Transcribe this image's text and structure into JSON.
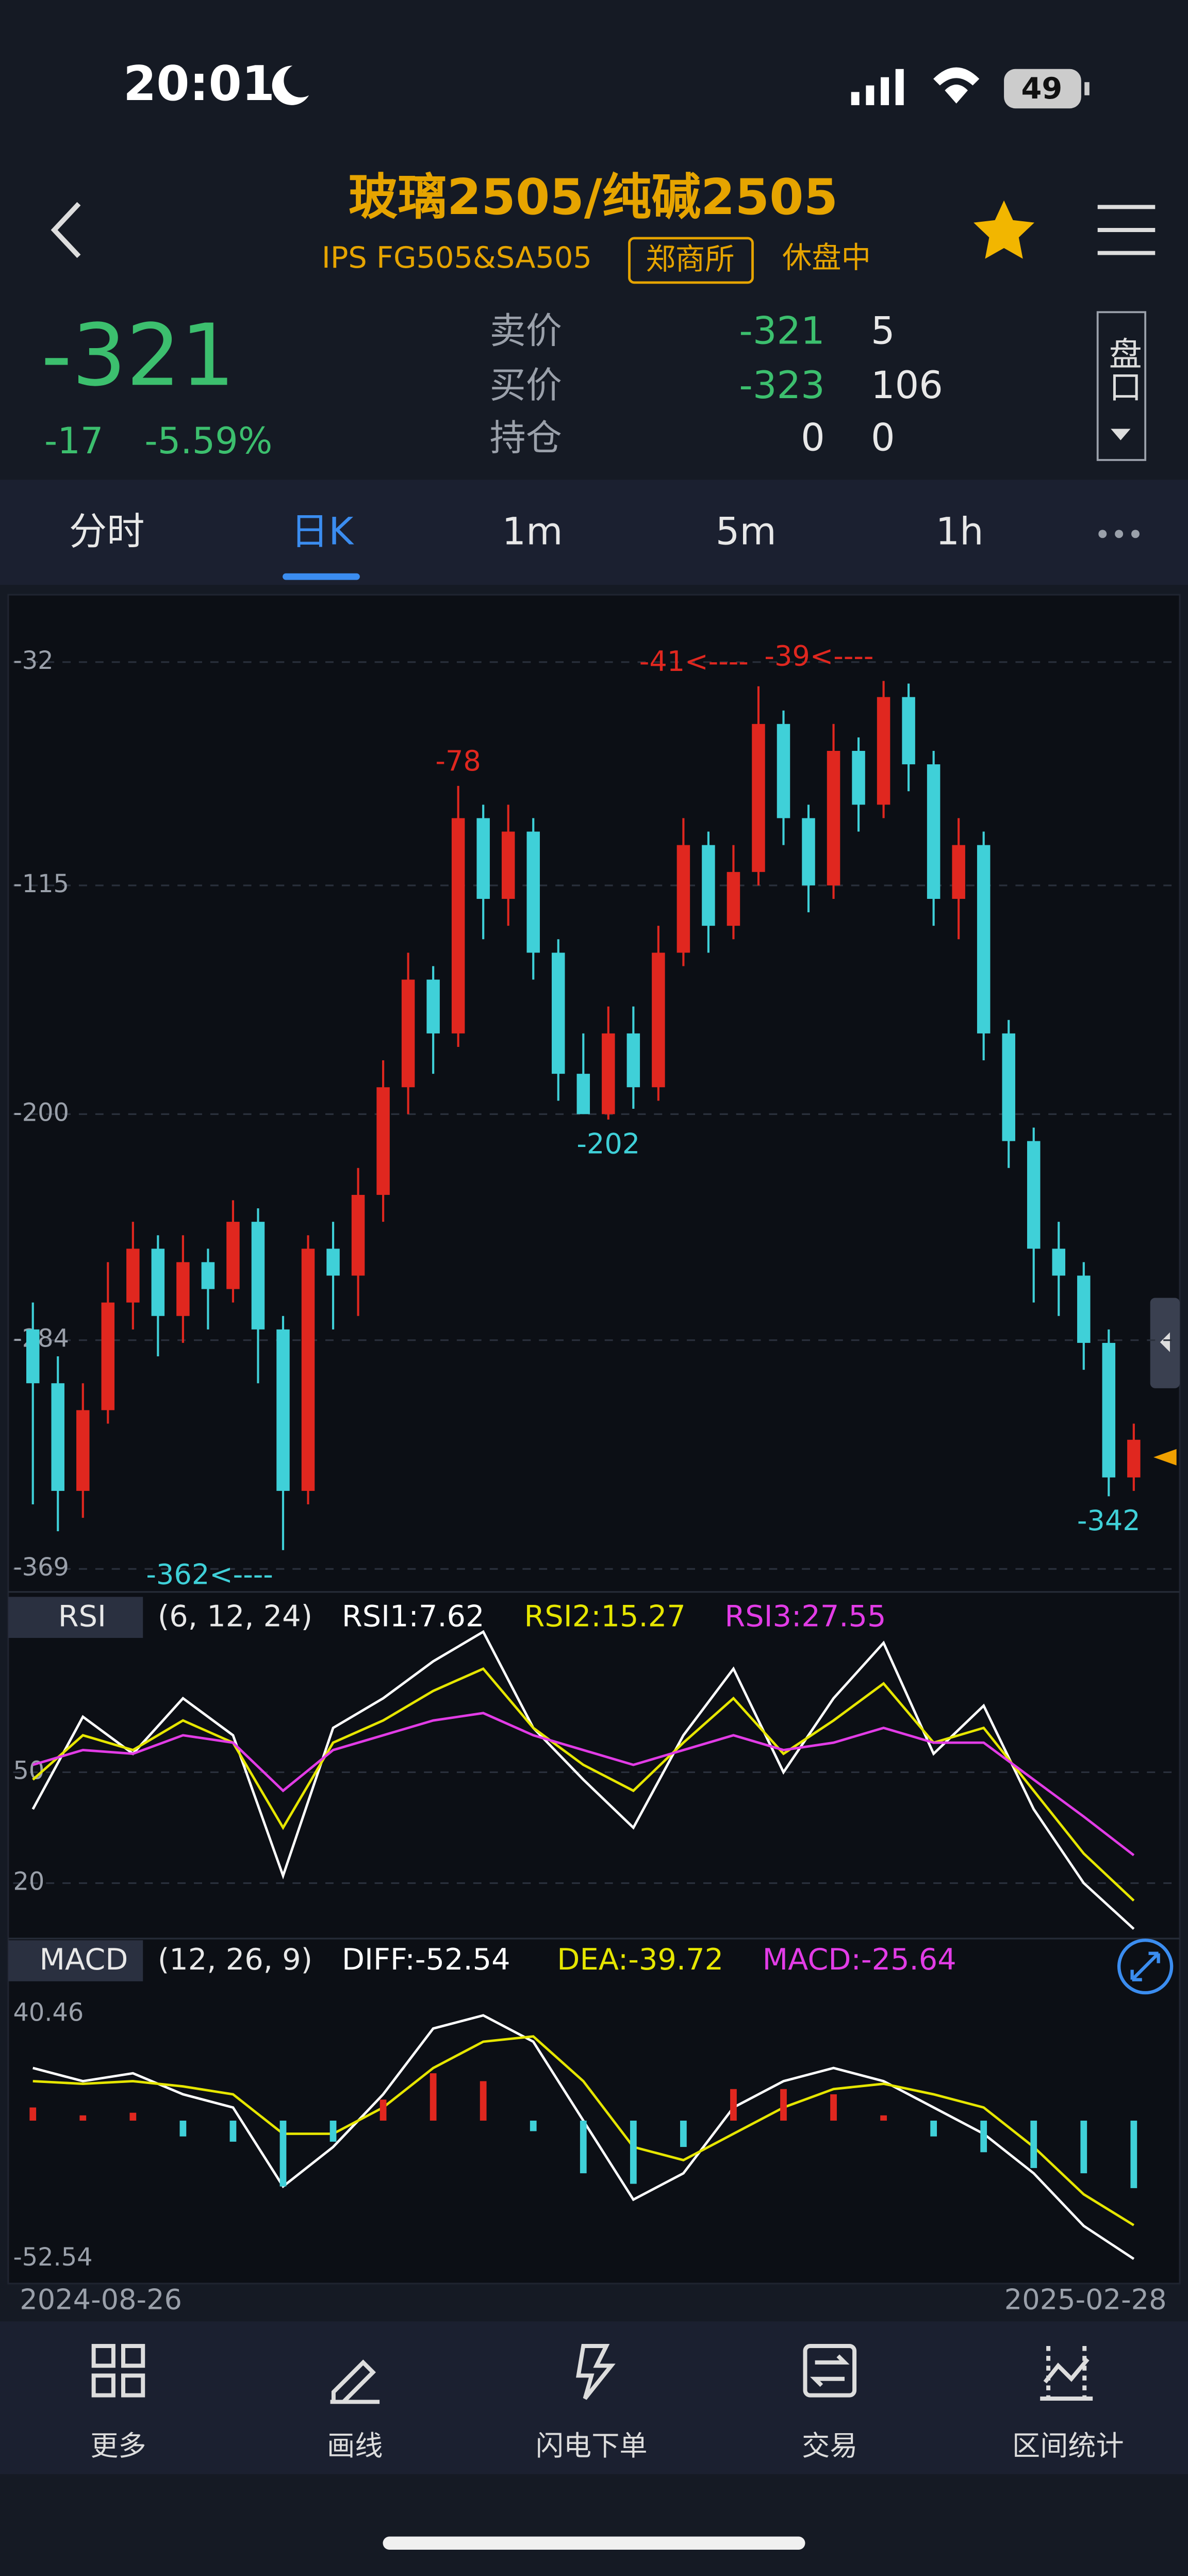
{
  "status_bar": {
    "time": "20:01",
    "battery": "49"
  },
  "header": {
    "title": "玻璃2505/纯碱2505",
    "subtitle": "IPS FG505&SA505",
    "exchange": "郑商所",
    "state": "休盘中"
  },
  "quote": {
    "last": -321,
    "change": -17,
    "change_pct": "-5.59%"
  },
  "order_book": [
    {
      "label": "卖价",
      "price": -321,
      "qty": 5
    },
    {
      "label": "买价",
      "price": -323,
      "qty": 106
    },
    {
      "label": "持仓",
      "price": 0,
      "qty": 0
    }
  ],
  "depth_button": "盘口",
  "tabs": [
    "分时",
    "日K",
    "1m",
    "5m",
    "1h"
  ],
  "chart_data": [
    {
      "type": "candlestick",
      "categories": [
        "2024-08-26",
        null,
        null,
        null,
        null,
        null,
        null,
        null,
        null,
        null,
        null,
        null,
        null,
        null,
        null,
        null,
        null,
        null,
        null,
        null,
        null,
        null,
        null,
        null,
        null,
        null,
        null,
        null,
        null,
        null,
        null,
        null,
        null,
        null,
        null,
        null,
        null,
        null,
        null,
        null,
        null,
        null,
        null,
        null,
        "2025-02-28"
      ],
      "open": [
        -280,
        -300,
        -340,
        -310,
        -270,
        -250,
        -275,
        -255,
        -265,
        -240,
        -280,
        -340,
        -250,
        -260,
        -230,
        -190,
        -150,
        -170,
        -90,
        -120,
        -95,
        -140,
        -185,
        -200,
        -170,
        -190,
        -140,
        -100,
        -130,
        -110,
        -55,
        -90,
        -115,
        -65,
        -85,
        -45,
        -70,
        -120,
        -100,
        -170,
        -210,
        -250,
        -260,
        -285,
        -335
      ],
      "high": [
        -270,
        -290,
        -300,
        -255,
        -240,
        -245,
        -245,
        -250,
        -232,
        -235,
        -275,
        -245,
        -240,
        -220,
        -180,
        -140,
        -145,
        -78,
        -85,
        -85,
        -90,
        -135,
        -170,
        -160,
        -160,
        -130,
        -90,
        -95,
        -100,
        -41,
        -50,
        -85,
        -55,
        -60,
        -39,
        -40,
        -65,
        -90,
        -95,
        -165,
        -205,
        -240,
        -255,
        -280,
        -315
      ],
      "low": [
        -345,
        -355,
        -350,
        -315,
        -280,
        -290,
        -285,
        -280,
        -270,
        -300,
        -362,
        -345,
        -280,
        -275,
        -240,
        -200,
        -185,
        -175,
        -135,
        -130,
        -150,
        -195,
        -200,
        -202,
        -198,
        -195,
        -145,
        -140,
        -135,
        -115,
        -100,
        -125,
        -120,
        -95,
        -90,
        -80,
        -130,
        -135,
        -180,
        -220,
        -270,
        -275,
        -295,
        -342,
        -340
      ],
      "close": [
        -300,
        -340,
        -310,
        -270,
        -250,
        -275,
        -255,
        -265,
        -240,
        -280,
        -340,
        -250,
        -260,
        -230,
        -190,
        -150,
        -170,
        -90,
        -120,
        -95,
        -140,
        -185,
        -200,
        -170,
        -190,
        -140,
        -100,
        -130,
        -110,
        -55,
        -90,
        -115,
        -65,
        -85,
        -45,
        -70,
        -120,
        -100,
        -170,
        -210,
        -250,
        -260,
        -285,
        -335,
        -321
      ],
      "up_color": "#e0271f",
      "down_color": "#3fd0d8",
      "ylim": [
        -369,
        -32
      ],
      "yticks": [
        -32,
        -115,
        -200,
        -284,
        -369
      ],
      "grid": true,
      "annotations": [
        {
          "value": -78,
          "label": "-78"
        },
        {
          "value": -41,
          "label": "-41<----"
        },
        {
          "value": -39,
          "label": "-39<----"
        },
        {
          "value": -202,
          "label": "-202"
        },
        {
          "value": -362,
          "label": "-362<----"
        },
        {
          "value": -342,
          "label": "-342"
        }
      ]
    },
    {
      "type": "line",
      "label": "RSI",
      "params": "(6, 12, 24)",
      "ylim": [
        5,
        85
      ],
      "yticks": [
        50,
        20
      ],
      "grid": true,
      "series": [
        {
          "name": "RSI1:7.62",
          "color": "#ffffff",
          "values": [
            40,
            65,
            55,
            70,
            60,
            22,
            62,
            70,
            80,
            88,
            62,
            48,
            35,
            60,
            78,
            50,
            70,
            85,
            55,
            68,
            40,
            20,
            7.62
          ]
        },
        {
          "name": "RSI2:15.27",
          "color": "#e6e600",
          "values": [
            48,
            60,
            56,
            64,
            58,
            35,
            58,
            64,
            72,
            78,
            62,
            52,
            45,
            58,
            70,
            55,
            64,
            74,
            58,
            62,
            45,
            28,
            15.27
          ]
        },
        {
          "name": "RSI3:27.55",
          "color": "#e23ce6",
          "values": [
            52,
            56,
            55,
            60,
            58,
            45,
            56,
            60,
            64,
            66,
            60,
            56,
            52,
            56,
            60,
            56,
            58,
            62,
            58,
            58,
            48,
            38,
            27.55
          ]
        }
      ]
    },
    {
      "type": "macd",
      "label": "MACD",
      "params": "(12, 26, 9)",
      "ylim": [
        -52.54,
        40.46
      ],
      "yticks": [
        40.46,
        -52.54
      ],
      "up_color": "#e0271f",
      "down_color": "#3fd0d8",
      "series": [
        {
          "name": "DIFF:-52.54",
          "color": "#ffffff",
          "style": "line",
          "values": [
            20,
            15,
            18,
            10,
            5,
            -25,
            -10,
            10,
            35,
            40,
            30,
            0,
            -30,
            -20,
            5,
            15,
            20,
            15,
            5,
            -5,
            -20,
            -40,
            -52.54
          ]
        },
        {
          "name": "DEA:-39.72",
          "color": "#e6e600",
          "style": "line",
          "values": [
            15,
            14,
            15,
            13,
            10,
            -5,
            -5,
            5,
            20,
            30,
            32,
            15,
            -10,
            -15,
            -5,
            5,
            12,
            14,
            10,
            5,
            -10,
            -28,
            -39.72
          ]
        },
        {
          "name": "MACD:-25.64",
          "color": "#e23ce6",
          "style": "bar",
          "values": [
            5,
            2,
            3,
            -6,
            -8,
            -25,
            -8,
            8,
            18,
            15,
            -4,
            -20,
            -24,
            -10,
            12,
            12,
            10,
            2,
            -6,
            -12,
            -18,
            -20,
            -25.64
          ]
        }
      ]
    }
  ],
  "toolbar": [
    "更多",
    "画线",
    "闪电下单",
    "交易",
    "区间统计"
  ]
}
